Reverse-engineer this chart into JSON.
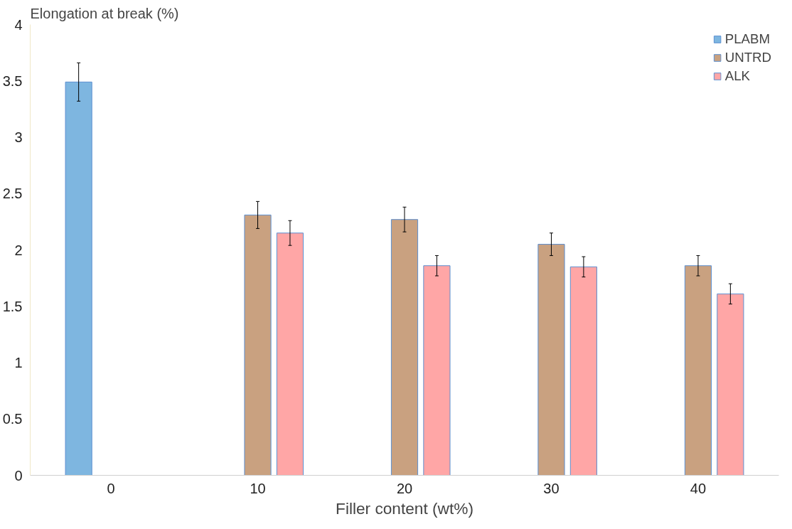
{
  "chart_data": {
    "type": "bar",
    "xlabel": "Filler content (wt%)",
    "ylabel": "Elongation at break (%)",
    "categories": [
      "0",
      "10",
      "20",
      "30",
      "40"
    ],
    "series": [
      {
        "name": "PLABM",
        "color": "#7eb6e0",
        "values": [
          3.49,
          null,
          null,
          null,
          null
        ],
        "errors": [
          0.17,
          null,
          null,
          null,
          null
        ]
      },
      {
        "name": "UNTRD",
        "color": "#c9a180",
        "values": [
          null,
          2.31,
          2.27,
          2.05,
          1.86
        ],
        "errors": [
          null,
          0.12,
          0.11,
          0.1,
          0.09
        ]
      },
      {
        "name": "ALK",
        "color": "#ffa6a6",
        "values": [
          null,
          2.15,
          1.86,
          1.85,
          1.61
        ],
        "errors": [
          null,
          0.11,
          0.09,
          0.09,
          0.09
        ]
      }
    ],
    "ylim": [
      0,
      4
    ],
    "yticks": [
      0,
      0.5,
      1,
      1.5,
      2,
      2.5,
      3,
      3.5,
      4
    ],
    "grid": false,
    "legend": "top right"
  }
}
